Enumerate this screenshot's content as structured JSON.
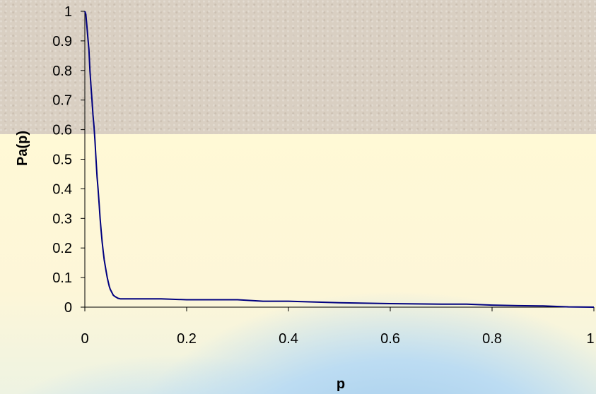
{
  "chart_data": {
    "type": "line",
    "title": "",
    "xlabel": "p",
    "ylabel": "Pa(p)",
    "xlim": [
      0,
      1
    ],
    "ylim": [
      0,
      1
    ],
    "x_ticks": [
      "0",
      "0.2",
      "0.4",
      "0.6",
      "0.8",
      "1"
    ],
    "y_ticks": [
      "0",
      "0.1",
      "0.2",
      "0.3",
      "0.4",
      "0.5",
      "0.6",
      "0.7",
      "0.8",
      "0.9",
      "1"
    ],
    "grid": false,
    "line_color": "#00007f",
    "series": [
      {
        "x": [
          0,
          0.002,
          0.004,
          0.006,
          0.008,
          0.01,
          0.012,
          0.014,
          0.016,
          0.018,
          0.02,
          0.022,
          0.024,
          0.026,
          0.028,
          0.03,
          0.032,
          0.034,
          0.036,
          0.038,
          0.04,
          0.042,
          0.044,
          0.046,
          0.048,
          0.05,
          0.053,
          0.056,
          0.06,
          0.065,
          0.07,
          0.1,
          0.15,
          0.2,
          0.3,
          0.35,
          0.4,
          0.5,
          0.6,
          0.7,
          0.75,
          0.8,
          0.85,
          0.9,
          0.95,
          1
        ],
        "y": [
          1,
          0.99,
          0.95,
          0.91,
          0.87,
          0.8,
          0.75,
          0.7,
          0.65,
          0.61,
          0.56,
          0.5,
          0.44,
          0.4,
          0.35,
          0.3,
          0.26,
          0.22,
          0.19,
          0.16,
          0.14,
          0.12,
          0.1,
          0.085,
          0.07,
          0.06,
          0.05,
          0.04,
          0.035,
          0.03,
          0.028,
          0.028,
          0.028,
          0.025,
          0.025,
          0.02,
          0.02,
          0.015,
          0.012,
          0.01,
          0.01,
          0.007,
          0.005,
          0.004,
          0.001,
          0
        ]
      }
    ]
  }
}
